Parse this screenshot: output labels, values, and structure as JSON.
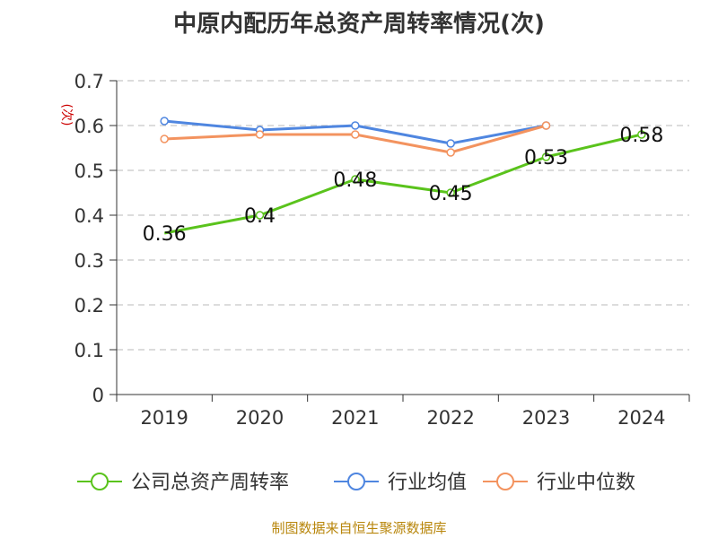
{
  "chart_data": {
    "type": "line",
    "title": "中原内配历年总资产周转率情况(次)",
    "ylabel": "(次)",
    "xlabel": "",
    "ylim": [
      0,
      0.7
    ],
    "yticks": [
      "0",
      "0.1",
      "0.2",
      "0.3",
      "0.4",
      "0.5",
      "0.6",
      "0.7"
    ],
    "categories": [
      "2019",
      "2020",
      "2021",
      "2022",
      "2023",
      "2024"
    ],
    "grid": true,
    "legend_position": "bottom",
    "series": [
      {
        "name": "公司总资产周转率",
        "color": "#5ac31c",
        "values": [
          0.36,
          0.4,
          0.48,
          0.45,
          0.53,
          0.58
        ],
        "labels": [
          "0.36",
          "0.4",
          "0.48",
          "0.45",
          "0.53",
          "0.58"
        ]
      },
      {
        "name": "行业均值",
        "color": "#4f86e0",
        "values": [
          0.61,
          0.59,
          0.6,
          0.56,
          0.6,
          null
        ]
      },
      {
        "name": "行业中位数",
        "color": "#f3935f",
        "values": [
          0.57,
          0.58,
          0.58,
          0.54,
          0.6,
          null
        ]
      }
    ],
    "source": "制图数据来自恒生聚源数据库"
  }
}
